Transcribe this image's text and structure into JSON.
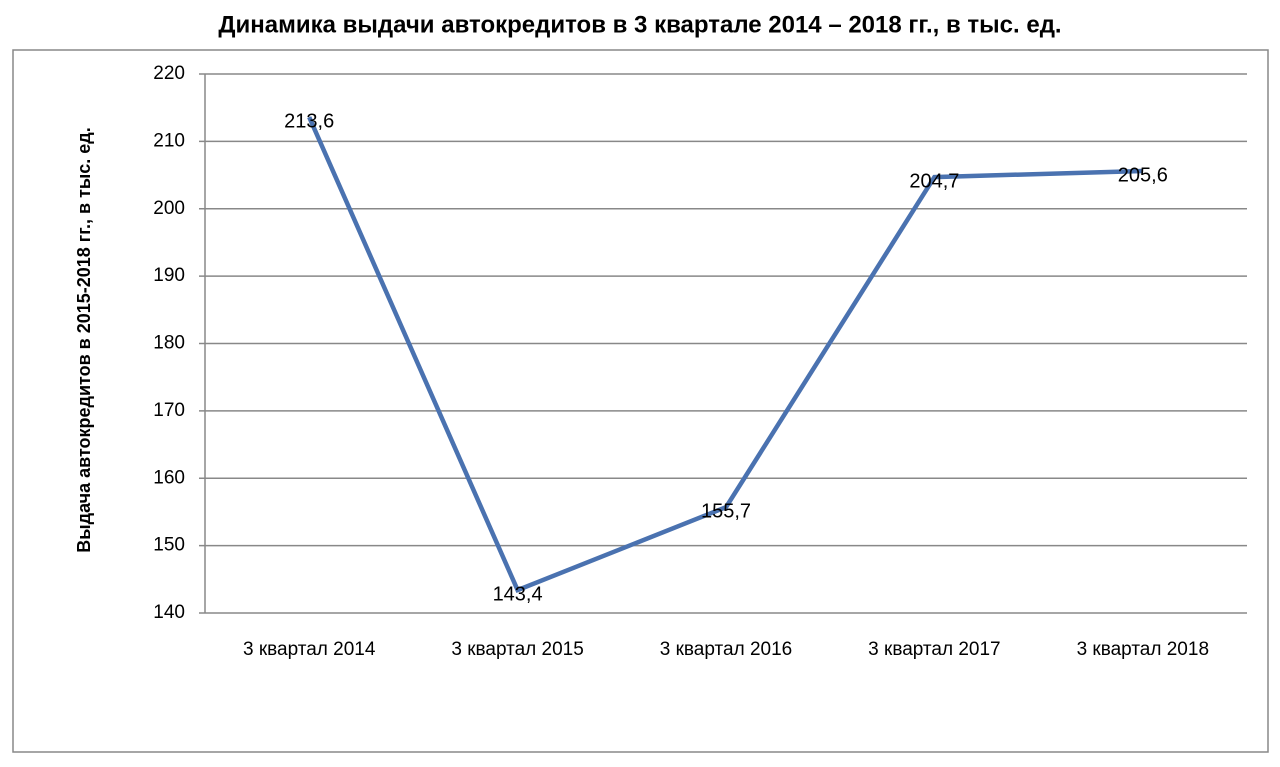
{
  "chart_data": {
    "type": "line",
    "title": "Динамика выдачи автокредитов в 3 квартале 2014 – 2018 гг., в тыс. ед.",
    "y_label": "Выдача автокредитов  в 2015-2018 гг., в тыс. ед.",
    "categories": [
      "3 квартал 2014",
      "3 квартал 2015",
      "3 квартал 2016",
      "3 квартал 2017",
      "3 квартал 2018"
    ],
    "values": [
      213.6,
      143.4,
      155.7,
      204.7,
      205.6
    ],
    "value_labels": [
      "213,6",
      "143,4",
      "155,7",
      "204,7",
      "205,6"
    ],
    "color": "#4a72b0",
    "ylim": [
      140,
      220
    ],
    "yticks": [
      140,
      150,
      160,
      170,
      180,
      190,
      200,
      210,
      220
    ],
    "grid": true
  }
}
